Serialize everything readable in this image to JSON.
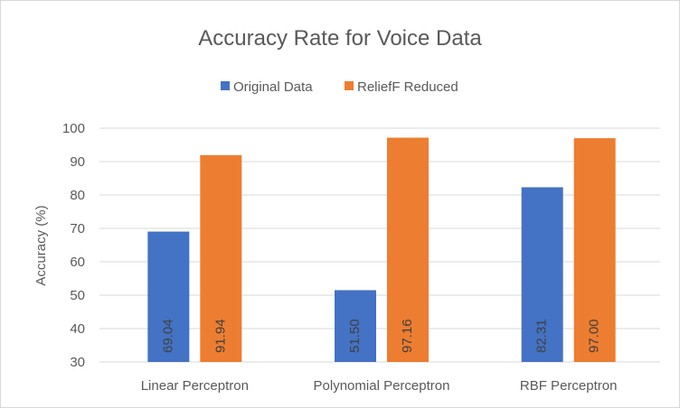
{
  "chart_data": {
    "type": "bar",
    "title": "Accuracy Rate for Voice Data",
    "xlabel": "",
    "ylabel": "Accuracy (%)",
    "ylim": [
      30,
      100
    ],
    "yticks": [
      30,
      40,
      50,
      60,
      70,
      80,
      90,
      100
    ],
    "categories": [
      "Linear Perceptron",
      "Polynomial Perceptron",
      "RBF Perceptron"
    ],
    "series": [
      {
        "name": "Original Data",
        "color": "#4472c4",
        "values": [
          69.04,
          51.5,
          82.31
        ],
        "labels": [
          "69.04",
          "51.50",
          "82.31"
        ]
      },
      {
        "name": "ReliefF Reduced",
        "color": "#ed7d31",
        "values": [
          91.94,
          97.16,
          97.0
        ],
        "labels": [
          "91.94",
          "97.16",
          "97.00"
        ]
      }
    ],
    "grid": true,
    "legend_position": "top"
  }
}
